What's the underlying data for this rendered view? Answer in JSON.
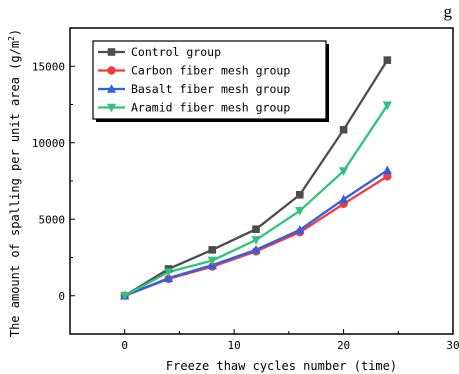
{
  "top_fragment": "g",
  "chart_data": {
    "type": "line",
    "title": "",
    "xlabel": "Freeze thaw cycles number (time)",
    "ylabel": "The amount of spalling per unit area (g/m²)",
    "xlim": [
      -5,
      30
    ],
    "ylim": [
      -2500,
      17500
    ],
    "x_ticks": [
      0,
      10,
      20,
      30
    ],
    "y_ticks": [
      0,
      5000,
      10000,
      15000
    ],
    "x_tick_labels": [
      "0",
      "10",
      "20",
      "30"
    ],
    "y_tick_labels": [
      "0",
      "5000",
      "10000",
      "15000"
    ],
    "x": [
      0,
      4,
      8,
      12,
      16,
      20,
      24
    ],
    "legend_position": "top-left",
    "series": [
      {
        "name": "Control group",
        "color": "#4d4d4d",
        "marker": "square",
        "values": [
          0,
          1750,
          3000,
          4350,
          6600,
          10850,
          15400
        ]
      },
      {
        "name": "Carbon fiber mesh group",
        "color": "#f03c3c",
        "marker": "circle",
        "values": [
          0,
          1100,
          1900,
          2900,
          4150,
          6000,
          7800
        ]
      },
      {
        "name": "Basalt fiber mesh group",
        "color": "#2f5fe6",
        "marker": "triangle",
        "values": [
          0,
          1150,
          2000,
          3000,
          4300,
          6300,
          8200
        ]
      },
      {
        "name": "Aramid fiber mesh group",
        "color": "#2ec47a",
        "marker": "triangle-down",
        "values": [
          0,
          1550,
          2300,
          3650,
          5550,
          8150,
          12450
        ]
      }
    ]
  }
}
